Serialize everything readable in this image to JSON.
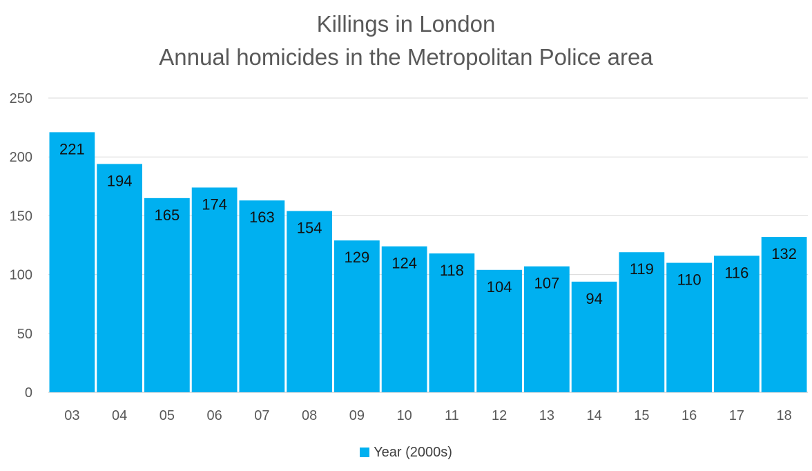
{
  "chart_data": {
    "type": "bar",
    "title": "Killings in London",
    "subtitle": "Annual homicides in the Metropolitan Police area",
    "categories": [
      "03",
      "04",
      "05",
      "06",
      "07",
      "08",
      "09",
      "10",
      "11",
      "12",
      "13",
      "14",
      "15",
      "16",
      "17",
      "18"
    ],
    "series": [
      {
        "name": "Year (2000s)",
        "values": [
          221,
          194,
          165,
          174,
          163,
          154,
          129,
          124,
          118,
          104,
          107,
          94,
          119,
          110,
          116,
          132
        ],
        "color": "#00B0F0"
      }
    ],
    "ylim": [
      0,
      250
    ],
    "yticks": [
      0,
      50,
      100,
      150,
      200,
      250
    ],
    "grid": true,
    "legend_position": "bottom",
    "data_labels": "inside-end"
  }
}
